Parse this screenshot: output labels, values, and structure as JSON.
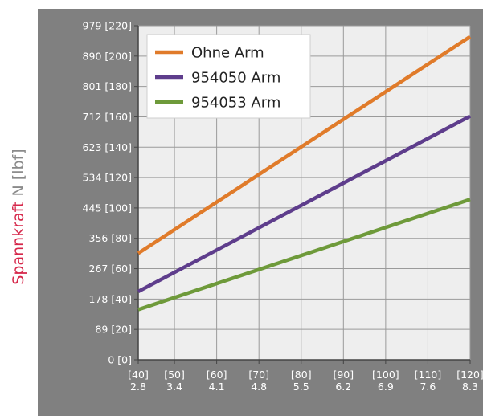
{
  "chart_data": {
    "type": "line",
    "title": "",
    "ylabel_main": "Spannkraft",
    "ylabel_unit": "N [lbf]",
    "xlabel": "",
    "x": [
      2.8,
      3.4,
      4.1,
      4.8,
      5.5,
      6.2,
      6.9,
      7.6,
      8.3
    ],
    "xtick_top": [
      "[40]",
      "[50]",
      "[60]",
      "[70]",
      "[80]",
      "[90]",
      "[100]",
      "[110]",
      "[120]"
    ],
    "xtick_bottom": [
      "2.8",
      "3.4",
      "4.1",
      "4.8",
      "5.5",
      "6.2",
      "6.9",
      "7.6",
      "8.3"
    ],
    "yticks": [
      0,
      89,
      178,
      267,
      356,
      445,
      534,
      623,
      712,
      801,
      890,
      979
    ],
    "ytick_labels": [
      "0 [0]",
      "89 [20]",
      "178 [40]",
      "267 [60]",
      "356 [80]",
      "445 [100]",
      "534 [120]",
      "623 [140]",
      "712 [160]",
      "801 [180]",
      "890 [200]",
      "979 [220]"
    ],
    "ylim": [
      0,
      979
    ],
    "grid": true,
    "legend_position": "top-left",
    "series": [
      {
        "name": "Ohne Arm",
        "color": "#e07b2a",
        "x": [
          2.8,
          8.3
        ],
        "y": [
          312,
          947
        ]
      },
      {
        "name": "954050 Arm",
        "color": "#5e3d8c",
        "x": [
          2.8,
          8.3
        ],
        "y": [
          200,
          714
        ]
      },
      {
        "name": "954053 Arm",
        "color": "#6e9a3a",
        "x": [
          2.8,
          8.3
        ],
        "y": [
          147,
          470
        ]
      }
    ],
    "colors": {
      "panel": "#808080",
      "plot_bg": "#eeeeee",
      "grid": "#9a9a9a",
      "tick_text": "#ffffff",
      "ylabel_red": "#d6274a",
      "ylabel_gray": "#8a8a8a"
    }
  }
}
